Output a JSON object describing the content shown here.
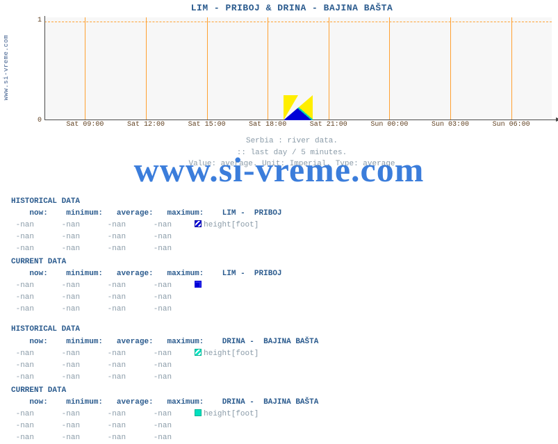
{
  "chart": {
    "title": "LIM -  PRIBOJ &  DRINA -  BAJINA BAŠTA",
    "type": "line",
    "background_color": "#f7f7f7",
    "grid_color": "#ffa030",
    "axis_color": "#4a4a4a",
    "ylim": [
      0,
      1
    ],
    "yticks": [
      0,
      1
    ],
    "x_labels": [
      "Sat 09:00",
      "Sat 12:00",
      "Sat 15:00",
      "Sat 18:00",
      "Sat 21:00",
      "Sun 00:00",
      "Sun 03:00",
      "Sun 06:00"
    ],
    "x_positions_pct": [
      8,
      20,
      32,
      44,
      56,
      68,
      80,
      92
    ],
    "tick_fontsize": 10,
    "tick_color": "#604020",
    "title_color": "#2b5b8e",
    "title_fontsize": 13
  },
  "site_label": "www.si-vreme.com",
  "watermark": "www.si-vreme.com",
  "sub": {
    "l1": "Serbia : river data.",
    "l2": ":: last day / 5 minutes.",
    "l3": "Value: average. Unit:  Imperial. Type: average"
  },
  "sections": [
    {
      "title": "HISTORICAL DATA",
      "series_label": "LIM -  PRIBOJ",
      "marker": "m-blue-striped",
      "unit": "height[foot]",
      "headers": [
        "now:",
        "minimum:",
        "average:",
        "maximum:"
      ],
      "rows": [
        [
          "-nan",
          "-nan",
          "-nan",
          "-nan"
        ],
        [
          "-nan",
          "-nan",
          "-nan",
          "-nan"
        ],
        [
          "-nan",
          "-nan",
          "-nan",
          "-nan"
        ]
      ]
    },
    {
      "title": "CURRENT DATA",
      "series_label": "LIM -  PRIBOJ",
      "marker": "m-blue-solid",
      "unit": "",
      "headers": [
        "now:",
        "minimum:",
        "average:",
        "maximum:"
      ],
      "rows": [
        [
          "-nan",
          "-nan",
          "-nan",
          "-nan"
        ],
        [
          "-nan",
          "-nan",
          "-nan",
          "-nan"
        ],
        [
          "-nan",
          "-nan",
          "-nan",
          "-nan"
        ]
      ]
    },
    {
      "title": "HISTORICAL DATA",
      "series_label": "DRINA -  BAJINA BAŠTA",
      "marker": "m-cyan-striped",
      "unit": "height[foot]",
      "spacer_before": true,
      "headers": [
        "now:",
        "minimum:",
        "average:",
        "maximum:"
      ],
      "rows": [
        [
          "-nan",
          "-nan",
          "-nan",
          "-nan"
        ],
        [
          "-nan",
          "-nan",
          "-nan",
          "-nan"
        ],
        [
          "-nan",
          "-nan",
          "-nan",
          "-nan"
        ]
      ]
    },
    {
      "title": "CURRENT DATA",
      "series_label": "DRINA -  BAJINA BAŠTA",
      "marker": "m-cyan-solid",
      "unit": "height[foot]",
      "headers": [
        "now:",
        "minimum:",
        "average:",
        "maximum:"
      ],
      "rows": [
        [
          "-nan",
          "-nan",
          "-nan",
          "-nan"
        ],
        [
          "-nan",
          "-nan",
          "-nan",
          "-nan"
        ],
        [
          "-nan",
          "-nan",
          "-nan",
          "-nan"
        ]
      ]
    }
  ],
  "colors": {
    "header_text": "#2b5b8e",
    "value_text": "#8a9ba8",
    "series_blue": "#0000d8",
    "series_cyan": "#00e0c0",
    "series_yellow": "#ffee00",
    "watermark": "#2b72d8"
  }
}
